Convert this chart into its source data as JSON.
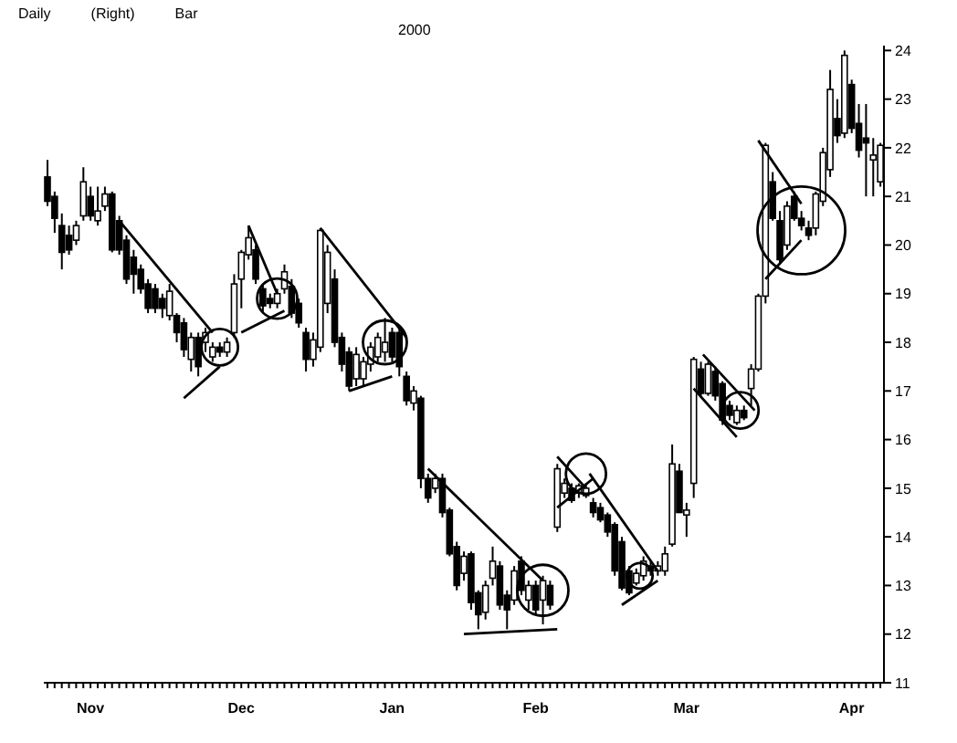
{
  "chart_data": {
    "type": "candlestick",
    "annotations": [
      "Daily",
      "(Right)",
      "Bar",
      "2000"
    ],
    "color": "#000000",
    "categories": [
      null,
      null,
      null,
      null,
      null,
      null,
      "Nov",
      null,
      null,
      null,
      null,
      null,
      null,
      null,
      null,
      null,
      null,
      null,
      null,
      null,
      null,
      null,
      null,
      null,
      null,
      null,
      null,
      "Dec",
      null,
      null,
      null,
      null,
      null,
      null,
      null,
      null,
      null,
      null,
      null,
      null,
      null,
      null,
      null,
      null,
      null,
      null,
      null,
      null,
      "Jan",
      null,
      null,
      null,
      null,
      null,
      null,
      null,
      null,
      null,
      null,
      null,
      null,
      null,
      null,
      null,
      null,
      null,
      null,
      null,
      "Feb",
      null,
      null,
      null,
      null,
      null,
      null,
      null,
      null,
      null,
      null,
      null,
      null,
      null,
      null,
      null,
      null,
      null,
      null,
      null,
      null,
      "Mar",
      null,
      null,
      null,
      null,
      null,
      null,
      null,
      null,
      null,
      null,
      null,
      null,
      null,
      null,
      null,
      null,
      null,
      null,
      null,
      null,
      null,
      null,
      "Apr",
      null,
      null,
      null,
      null
    ],
    "ohlc": [
      [
        21.4,
        21.75,
        20.8,
        20.9
      ],
      [
        21.0,
        21.1,
        20.25,
        20.55
      ],
      [
        20.4,
        20.65,
        19.5,
        19.85
      ],
      [
        20.2,
        20.4,
        19.8,
        19.9
      ],
      [
        20.1,
        20.5,
        20.0,
        20.4
      ],
      [
        20.6,
        21.6,
        20.5,
        21.3
      ],
      [
        21.0,
        21.2,
        20.5,
        20.6
      ],
      [
        20.5,
        21.2,
        20.4,
        20.7
      ],
      [
        20.8,
        21.2,
        20.7,
        21.05
      ],
      [
        21.05,
        21.1,
        19.85,
        19.9
      ],
      [
        20.5,
        20.6,
        19.8,
        19.9
      ],
      [
        20.1,
        20.2,
        19.2,
        19.3
      ],
      [
        19.75,
        19.9,
        19.0,
        19.4
      ],
      [
        19.5,
        19.6,
        19.0,
        19.1
      ],
      [
        19.2,
        19.3,
        18.6,
        18.7
      ],
      [
        19.1,
        19.2,
        18.6,
        18.7
      ],
      [
        18.9,
        19.0,
        18.5,
        18.7
      ],
      [
        18.55,
        19.2,
        18.45,
        19.05
      ],
      [
        18.55,
        18.6,
        18.0,
        18.2
      ],
      [
        18.4,
        18.5,
        17.7,
        17.85
      ],
      [
        17.65,
        18.2,
        17.4,
        18.1
      ],
      [
        18.1,
        18.2,
        17.3,
        17.5
      ],
      [
        18.0,
        18.3,
        17.8,
        18.2
      ],
      [
        17.7,
        18.0,
        17.6,
        17.9
      ],
      [
        17.9,
        18.0,
        17.7,
        17.8
      ],
      [
        17.8,
        18.1,
        17.7,
        18.0
      ],
      [
        18.2,
        19.4,
        18.1,
        19.2
      ],
      [
        19.3,
        19.9,
        18.7,
        19.85
      ],
      [
        19.8,
        20.4,
        19.7,
        20.15
      ],
      [
        19.9,
        20.0,
        19.2,
        19.3
      ],
      [
        19.1,
        19.2,
        18.6,
        18.75
      ],
      [
        18.9,
        19.0,
        18.7,
        18.8
      ],
      [
        18.8,
        19.1,
        18.7,
        19.0
      ],
      [
        19.1,
        19.6,
        19.0,
        19.45
      ],
      [
        19.15,
        19.3,
        18.5,
        18.6
      ],
      [
        18.8,
        18.9,
        18.3,
        18.4
      ],
      [
        18.2,
        18.3,
        17.4,
        17.65
      ],
      [
        17.65,
        18.2,
        17.5,
        18.05
      ],
      [
        17.9,
        20.35,
        17.8,
        20.3
      ],
      [
        18.8,
        20.0,
        18.6,
        19.85
      ],
      [
        19.3,
        19.5,
        17.9,
        18.0
      ],
      [
        18.1,
        18.2,
        17.4,
        17.55
      ],
      [
        17.8,
        17.9,
        17.0,
        17.1
      ],
      [
        17.25,
        17.9,
        17.1,
        17.75
      ],
      [
        17.25,
        17.7,
        17.1,
        17.6
      ],
      [
        17.55,
        18.0,
        17.4,
        17.9
      ],
      [
        17.7,
        18.2,
        17.6,
        18.1
      ],
      [
        17.8,
        18.5,
        17.6,
        18.0
      ],
      [
        18.2,
        18.3,
        17.6,
        17.7
      ],
      [
        18.2,
        18.3,
        17.3,
        17.5
      ],
      [
        17.3,
        17.4,
        16.7,
        16.8
      ],
      [
        16.75,
        17.1,
        16.6,
        17.0
      ],
      [
        16.85,
        16.9,
        15.0,
        15.2
      ],
      [
        15.2,
        15.3,
        14.7,
        14.8
      ],
      [
        15.0,
        15.3,
        14.9,
        15.2
      ],
      [
        15.2,
        15.3,
        14.4,
        14.5
      ],
      [
        14.55,
        14.6,
        13.6,
        13.65
      ],
      [
        13.8,
        13.9,
        12.9,
        13.0
      ],
      [
        13.25,
        13.7,
        13.1,
        13.6
      ],
      [
        13.65,
        13.7,
        12.5,
        12.65
      ],
      [
        12.85,
        12.9,
        12.1,
        12.4
      ],
      [
        12.45,
        13.1,
        12.3,
        13.0
      ],
      [
        13.15,
        13.8,
        13.0,
        13.5
      ],
      [
        13.4,
        13.5,
        12.5,
        12.6
      ],
      [
        12.8,
        12.9,
        12.1,
        12.5
      ],
      [
        12.7,
        13.4,
        12.6,
        13.3
      ],
      [
        13.5,
        13.6,
        12.8,
        12.9
      ],
      [
        12.7,
        13.1,
        12.5,
        13.0
      ],
      [
        13.0,
        13.1,
        12.4,
        12.5
      ],
      [
        12.7,
        13.2,
        12.2,
        13.1
      ],
      [
        13.0,
        13.1,
        12.5,
        12.6
      ],
      [
        14.2,
        15.5,
        14.1,
        15.4
      ],
      [
        14.9,
        15.2,
        14.8,
        15.1
      ],
      [
        15.0,
        15.1,
        14.7,
        14.75
      ],
      [
        14.9,
        15.1,
        14.8,
        15.05
      ],
      [
        14.85,
        15.1,
        14.8,
        15.0
      ],
      [
        14.7,
        14.8,
        14.4,
        14.5
      ],
      [
        14.6,
        14.7,
        14.3,
        14.35
      ],
      [
        14.45,
        14.5,
        14.0,
        14.1
      ],
      [
        14.25,
        14.3,
        13.2,
        13.3
      ],
      [
        13.9,
        14.0,
        12.9,
        12.95
      ],
      [
        13.3,
        13.4,
        12.8,
        12.85
      ],
      [
        13.05,
        13.35,
        13.0,
        13.25
      ],
      [
        13.2,
        13.6,
        13.1,
        13.5
      ],
      [
        13.4,
        13.5,
        13.2,
        13.3
      ],
      [
        13.3,
        13.5,
        13.2,
        13.4
      ],
      [
        13.3,
        13.8,
        13.2,
        13.65
      ],
      [
        13.85,
        15.9,
        13.8,
        15.5
      ],
      [
        15.35,
        15.5,
        14.5,
        14.5
      ],
      [
        14.45,
        14.7,
        14.0,
        14.55
      ],
      [
        15.1,
        17.7,
        14.8,
        17.65
      ],
      [
        17.45,
        17.6,
        16.9,
        16.95
      ],
      [
        16.95,
        17.6,
        16.9,
        17.55
      ],
      [
        17.4,
        17.5,
        16.8,
        16.9
      ],
      [
        17.15,
        17.2,
        16.3,
        16.4
      ],
      [
        16.7,
        16.8,
        16.4,
        16.5
      ],
      [
        16.35,
        16.7,
        16.3,
        16.6
      ],
      [
        16.6,
        16.7,
        16.4,
        16.45
      ],
      [
        17.05,
        17.55,
        16.7,
        17.45
      ],
      [
        17.45,
        19.0,
        17.4,
        18.95
      ],
      [
        18.95,
        22.1,
        18.8,
        22.05
      ],
      [
        21.3,
        21.5,
        20.5,
        20.55
      ],
      [
        20.5,
        20.7,
        19.6,
        19.7
      ],
      [
        20.0,
        20.9,
        19.9,
        20.8
      ],
      [
        21.0,
        21.1,
        20.5,
        20.55
      ],
      [
        20.55,
        20.7,
        20.3,
        20.4
      ],
      [
        20.35,
        20.5,
        20.1,
        20.2
      ],
      [
        20.35,
        21.1,
        20.2,
        21.05
      ],
      [
        20.9,
        22.0,
        20.8,
        21.9
      ],
      [
        21.55,
        23.6,
        21.4,
        23.2
      ],
      [
        22.6,
        23.0,
        22.1,
        22.25
      ],
      [
        22.3,
        24.0,
        22.2,
        23.9
      ],
      [
        23.3,
        23.4,
        22.3,
        22.4
      ],
      [
        22.5,
        22.9,
        21.8,
        21.95
      ],
      [
        22.2,
        22.9,
        21.0,
        22.1
      ],
      [
        21.75,
        22.2,
        21.0,
        21.85
      ],
      [
        21.3,
        22.1,
        21.2,
        22.05
      ]
    ],
    "ylim": [
      11,
      24.1
    ],
    "yticks": [
      11,
      12,
      13,
      14,
      15,
      16,
      17,
      18,
      19,
      20,
      21,
      22,
      23,
      24
    ]
  }
}
